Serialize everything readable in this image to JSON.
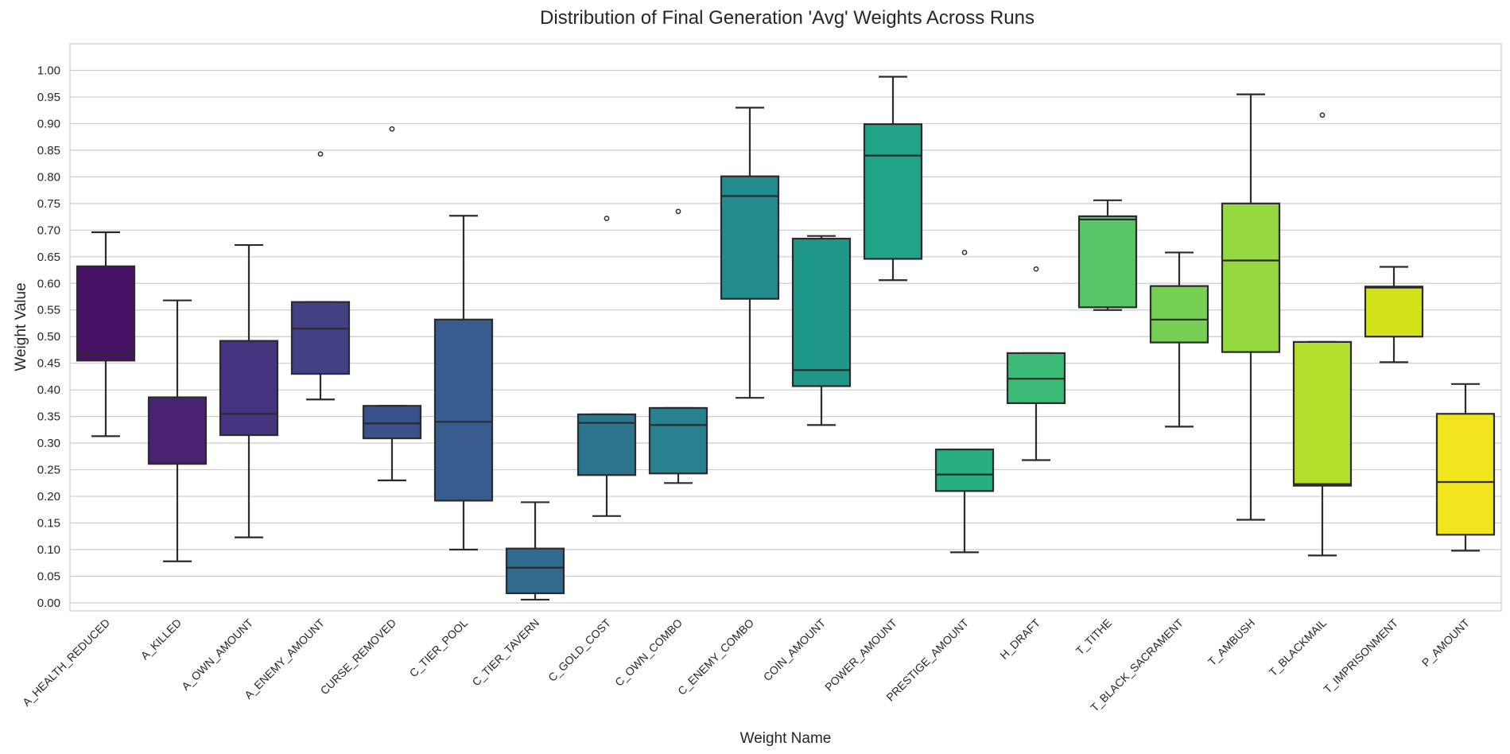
{
  "chart_data": {
    "type": "box",
    "title": "Distribution of Final Generation 'Avg' Weights Across Runs",
    "xlabel": "Weight Name",
    "ylabel": "Weight Value",
    "ylim": [
      -0.015,
      1.05
    ],
    "yticks": [
      "0.00",
      "0.05",
      "0.10",
      "0.15",
      "0.20",
      "0.25",
      "0.30",
      "0.35",
      "0.40",
      "0.45",
      "0.50",
      "0.55",
      "0.60",
      "0.65",
      "0.70",
      "0.75",
      "0.80",
      "0.85",
      "0.90",
      "0.95",
      "1.00"
    ],
    "grid": true,
    "categories": [
      "A_HEALTH_REDUCED",
      "A_KILLED",
      "A_OWN_AMOUNT",
      "A_ENEMY_AMOUNT",
      "CURSE_REMOVED",
      "C_TIER_POOL",
      "C_TIER_TAVERN",
      "C_GOLD_COST",
      "C_OWN_COMBO",
      "C_ENEMY_COMBO",
      "COIN_AMOUNT",
      "POWER_AMOUNT",
      "PRESTIGE_AMOUNT",
      "H_DRAFT",
      "T_TITHE",
      "T_BLACK_SACRAMENT",
      "T_AMBUSH",
      "T_BLACKMAIL",
      "T_IMPRISONMENT",
      "P_AMOUNT"
    ],
    "boxes": [
      {
        "whisker_low": 0.313,
        "q1": 0.455,
        "median": 0.468,
        "q3": 0.632,
        "whisker_high": 0.696,
        "outliers": [],
        "color": "#471164"
      },
      {
        "whisker_low": 0.078,
        "q1": 0.261,
        "median": 0.262,
        "q3": 0.386,
        "whisker_high": 0.568,
        "outliers": [],
        "color": "#482374"
      },
      {
        "whisker_low": 0.123,
        "q1": 0.315,
        "median": 0.355,
        "q3": 0.492,
        "whisker_high": 0.672,
        "outliers": [],
        "color": "#46337f"
      },
      {
        "whisker_low": 0.382,
        "q1": 0.43,
        "median": 0.515,
        "q3": 0.565,
        "whisker_high": 0.565,
        "outliers": [
          0.843
        ],
        "color": "#424186"
      },
      {
        "whisker_low": 0.23,
        "q1": 0.309,
        "median": 0.337,
        "q3": 0.37,
        "whisker_high": 0.37,
        "outliers": [
          0.89
        ],
        "color": "#3b518b"
      },
      {
        "whisker_low": 0.1,
        "q1": 0.192,
        "median": 0.34,
        "q3": 0.532,
        "whisker_high": 0.727,
        "outliers": [],
        "color": "#365d8d"
      },
      {
        "whisker_low": 0.006,
        "q1": 0.018,
        "median": 0.066,
        "q3": 0.102,
        "whisker_high": 0.189,
        "outliers": [],
        "color": "#306a8e"
      },
      {
        "whisker_low": 0.163,
        "q1": 0.24,
        "median": 0.338,
        "q3": 0.354,
        "whisker_high": 0.354,
        "outliers": [
          0.722
        ],
        "color": "#2c758e"
      },
      {
        "whisker_low": 0.225,
        "q1": 0.243,
        "median": 0.334,
        "q3": 0.366,
        "whisker_high": 0.366,
        "outliers": [
          0.735
        ],
        "color": "#27818e"
      },
      {
        "whisker_low": 0.385,
        "q1": 0.571,
        "median": 0.764,
        "q3": 0.801,
        "whisker_high": 0.93,
        "outliers": [],
        "color": "#228b8d"
      },
      {
        "whisker_low": 0.334,
        "q1": 0.407,
        "median": 0.437,
        "q3": 0.684,
        "whisker_high": 0.689,
        "outliers": [],
        "color": "#1f988b"
      },
      {
        "whisker_low": 0.606,
        "q1": 0.646,
        "median": 0.84,
        "q3": 0.899,
        "whisker_high": 0.988,
        "outliers": [],
        "color": "#20a386"
      },
      {
        "whisker_low": 0.095,
        "q1": 0.21,
        "median": 0.241,
        "q3": 0.288,
        "whisker_high": 0.288,
        "outliers": [
          0.658
        ],
        "color": "#28ae80"
      },
      {
        "whisker_low": 0.268,
        "q1": 0.375,
        "median": 0.421,
        "q3": 0.469,
        "whisker_high": 0.469,
        "outliers": [
          0.627
        ],
        "color": "#3bbb75"
      },
      {
        "whisker_low": 0.55,
        "q1": 0.555,
        "median": 0.72,
        "q3": 0.726,
        "whisker_high": 0.756,
        "outliers": [],
        "color": "#56c667"
      },
      {
        "whisker_low": 0.331,
        "q1": 0.489,
        "median": 0.532,
        "q3": 0.595,
        "whisker_high": 0.658,
        "outliers": [],
        "color": "#75d054"
      },
      {
        "whisker_low": 0.156,
        "q1": 0.471,
        "median": 0.643,
        "q3": 0.75,
        "whisker_high": 0.955,
        "outliers": [],
        "color": "#95d840"
      },
      {
        "whisker_low": 0.089,
        "q1": 0.22,
        "median": 0.223,
        "q3": 0.49,
        "whisker_high": 0.49,
        "outliers": [
          0.916
        ],
        "color": "#b5de2b"
      },
      {
        "whisker_low": 0.452,
        "q1": 0.5,
        "median": 0.592,
        "q3": 0.594,
        "whisker_high": 0.631,
        "outliers": [],
        "color": "#d5e21a"
      },
      {
        "whisker_low": 0.098,
        "q1": 0.128,
        "median": 0.227,
        "q3": 0.355,
        "whisker_high": 0.411,
        "outliers": [],
        "color": "#f1e51d"
      }
    ]
  }
}
